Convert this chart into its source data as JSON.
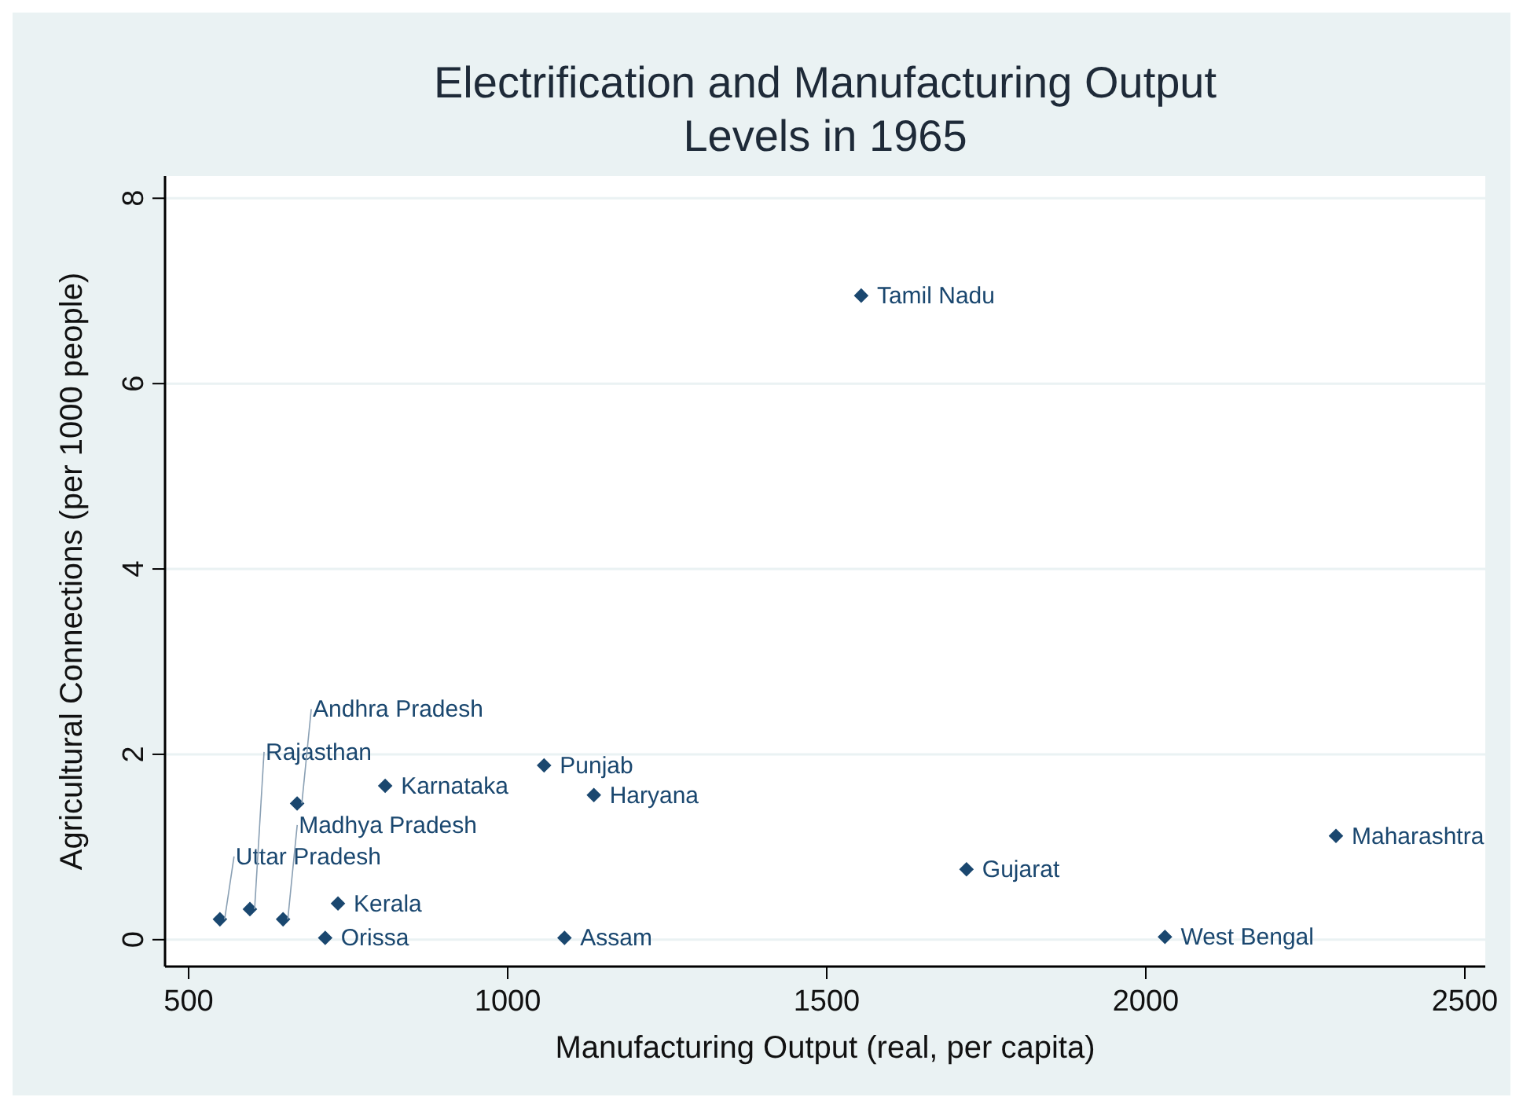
{
  "chart_data": {
    "type": "scatter",
    "title": "Electrification and Manufacturing Output\nLevels in 1965",
    "xlabel": "Manufacturing Output (real, per capita)",
    "ylabel": "Agricultural Connections (per 1000 people)",
    "xlim": [
      463,
      2532
    ],
    "ylim": [
      -0.29,
      8.24
    ],
    "xticks": [
      500,
      1000,
      1500,
      2000,
      2500
    ],
    "yticks": [
      0,
      2,
      4,
      6,
      8
    ],
    "grid": "y",
    "marker": "diamond",
    "series": [
      {
        "color": "#1a476f",
        "x": [
          549,
          596,
          648,
          734,
          714,
          808,
          670,
          1057,
          1135,
          1554,
          1089,
          1719,
          2030,
          2298
        ],
        "values": [
          0.22,
          0.33,
          0.22,
          0.39,
          0.02,
          1.66,
          1.47,
          1.88,
          1.56,
          6.95,
          0.02,
          0.76,
          0.03,
          1.12
        ],
        "value_labels": [
          "Uttar Pradesh",
          "Rajasthan",
          "Madhya Pradesh",
          "Kerala",
          "Orissa",
          "Karnataka",
          "Andhra Pradesh",
          "Punjab",
          "Haryana",
          "Tamil Nadu",
          "Assam",
          "Gujarat",
          "West Bengal",
          "Maharashtra"
        ]
      }
    ]
  }
}
